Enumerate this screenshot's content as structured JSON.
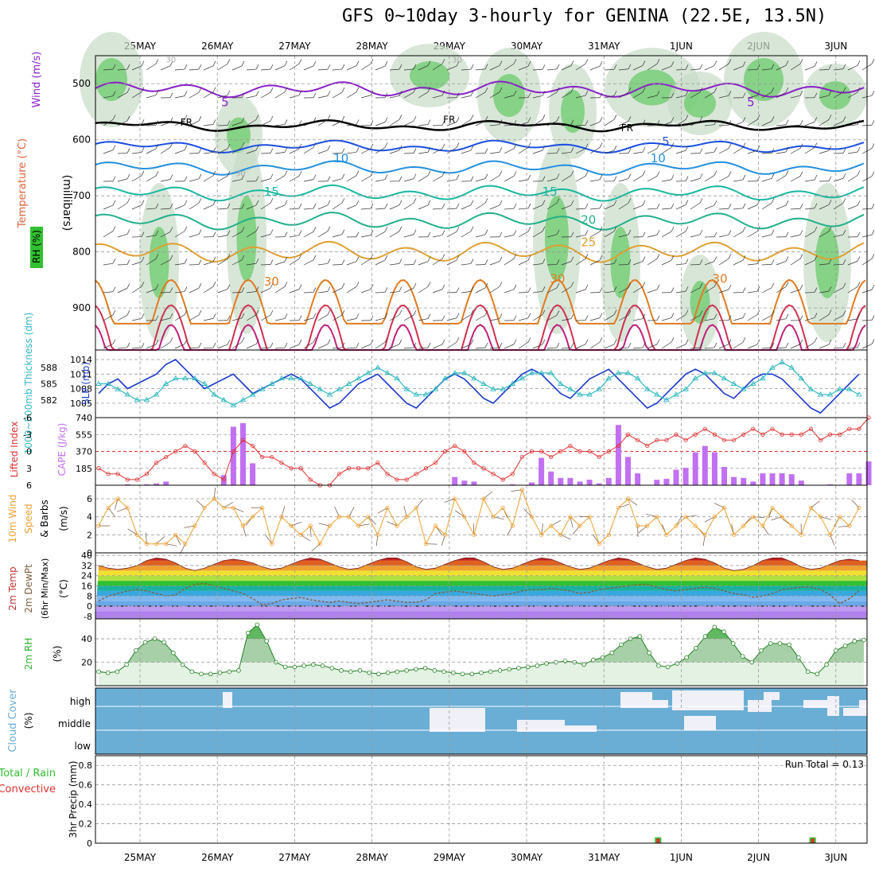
{
  "title": "GFS 0~10day 3-hourly for GENINA (22.5E, 13.5N)",
  "dates": [
    "25MAY",
    "26MAY",
    "27MAY",
    "28MAY",
    "29MAY",
    "30MAY",
    "31MAY",
    "1JUN",
    "2JUN",
    "3JUN"
  ],
  "colors": {
    "temp_cold": "#5a8ee8",
    "temp_mid": "#18b8a0",
    "temp_warm": "#e08820",
    "temp_hot": "#d0206a",
    "purple": "#8a20c8",
    "rh_green": "#30d030",
    "slp": "#1a3acc",
    "thickness": "#30b8c0",
    "cape": "#c070f0",
    "li": "#e03030",
    "wind10": "#f0a030",
    "cloud": "#6aaed6",
    "precip_total": "#30c030",
    "precip_conv": "#e03030"
  },
  "chart_data": [
    {
      "type": "heatmap",
      "panel": "profile",
      "ylabel_left1": "RH (%)",
      "ylabel_left2": "Temperature (°C)",
      "ylabel_left3": "Wind (m/s)",
      "ylabel_right": "(millibars)",
      "ylim": [
        975,
        450
      ],
      "yticks": [
        500,
        600,
        700,
        800,
        900
      ],
      "contour_labels": [
        {
          "text": "5",
          "x": 1.1,
          "p": 540,
          "group": "purple"
        },
        {
          "text": "5",
          "x": 7.9,
          "p": 540,
          "group": "purple"
        },
        {
          "text": "FR",
          "x": 0.6,
          "p": 575,
          "group": "black"
        },
        {
          "text": "FR",
          "x": 4.0,
          "p": 570,
          "group": "black"
        },
        {
          "text": "FR",
          "x": 6.3,
          "p": 585,
          "group": "black"
        },
        {
          "text": "5",
          "x": 6.8,
          "p": 610,
          "group": "cold"
        },
        {
          "text": "10",
          "x": 2.6,
          "p": 640,
          "group": "cold2"
        },
        {
          "text": "10",
          "x": 6.7,
          "p": 640,
          "group": "cold2"
        },
        {
          "text": "15",
          "x": 1.7,
          "p": 700,
          "group": "mid"
        },
        {
          "text": "15",
          "x": 5.3,
          "p": 700,
          "group": "mid"
        },
        {
          "text": "20",
          "x": 5.8,
          "p": 750,
          "group": "mid2"
        },
        {
          "text": "25",
          "x": 5.8,
          "p": 790,
          "group": "warm"
        },
        {
          "text": "30",
          "x": 1.7,
          "p": 860,
          "group": "warm2"
        },
        {
          "text": "30",
          "x": 5.4,
          "p": 855,
          "group": "warm2"
        },
        {
          "text": "30",
          "x": 7.5,
          "p": 855,
          "group": "warm2"
        },
        {
          "text": "30",
          "x": 0.4,
          "p": 462,
          "group": "grey"
        },
        {
          "text": "30",
          "x": 1.3,
          "p": 665,
          "group": "grey"
        },
        {
          "text": "30",
          "x": 4.1,
          "p": 462,
          "group": "grey"
        }
      ]
    },
    {
      "type": "line",
      "panel": "slp",
      "ylabel_left": "1000~500mb Thickness (dm)",
      "ylabel_right": "SLP (mb)",
      "yticks_left": [
        582,
        585,
        588
      ],
      "yticks_right": [
        1005,
        1008,
        1011,
        1014
      ],
      "slp": [
        1007,
        1009,
        1010,
        1008,
        1009,
        1010,
        1011,
        1013,
        1014,
        1012,
        1010,
        1008,
        1009,
        1010,
        1011,
        1009,
        1007,
        1008,
        1009,
        1010,
        1011,
        1010,
        1008,
        1006,
        1004,
        1005,
        1007,
        1009,
        1010,
        1011,
        1009,
        1007,
        1005,
        1004,
        1006,
        1008,
        1010,
        1011,
        1010,
        1008,
        1006,
        1005,
        1007,
        1009,
        1011,
        1012,
        1011,
        1009,
        1007,
        1006,
        1008,
        1010,
        1011,
        1012,
        1010,
        1008,
        1006,
        1004,
        1005,
        1007,
        1009,
        1011,
        1012,
        1011,
        1009,
        1007,
        1006,
        1008,
        1010,
        1011,
        1011,
        1010,
        1008,
        1006,
        1004,
        1003,
        1005,
        1007,
        1009,
        1011
      ],
      "thickness": [
        585,
        585,
        584,
        583,
        582,
        582,
        583,
        585,
        586,
        586,
        586,
        585,
        583,
        582,
        581,
        582,
        583,
        584,
        585,
        586,
        586,
        586,
        585,
        584,
        583,
        584,
        585,
        586,
        587,
        588,
        587,
        586,
        584,
        583,
        583,
        584,
        586,
        587,
        587,
        586,
        585,
        584,
        584,
        585,
        586,
        587,
        587,
        587,
        585,
        584,
        583,
        583,
        584,
        586,
        587,
        587,
        586,
        584,
        583,
        582,
        583,
        584,
        586,
        587,
        587,
        586,
        585,
        584,
        585,
        586,
        588,
        589,
        588,
        586,
        584,
        583,
        583,
        584,
        584,
        583
      ]
    },
    {
      "type": "bar",
      "panel": "cape",
      "ylabel_left": "Lifted Index",
      "ylabel_right": "CAPE (J/kg)",
      "yticks_left": [
        -6,
        -3,
        0,
        3,
        6
      ],
      "yticks_right": [
        185,
        370,
        555,
        740
      ],
      "cape": [
        0,
        0,
        0,
        10,
        0,
        10,
        20,
        40,
        0,
        0,
        0,
        0,
        0,
        110,
        640,
        680,
        240,
        0,
        0,
        0,
        0,
        0,
        0,
        0,
        0,
        0,
        0,
        0,
        0,
        0,
        0,
        0,
        0,
        0,
        0,
        0,
        0,
        90,
        50,
        40,
        0,
        0,
        0,
        10,
        0,
        30,
        300,
        150,
        80,
        80,
        40,
        60,
        20,
        80,
        660,
        310,
        130,
        0,
        60,
        70,
        170,
        190,
        360,
        430,
        360,
        200,
        90,
        80,
        40,
        130,
        130,
        130,
        120,
        50,
        0,
        0,
        10,
        0,
        130,
        130,
        260
      ],
      "lifted_index": [
        3,
        4,
        4,
        5,
        5,
        4,
        2,
        1,
        0,
        -1,
        0,
        2,
        4,
        5,
        0,
        -2,
        -1,
        1,
        1,
        2,
        3,
        3,
        5,
        6,
        6,
        4,
        3,
        3,
        3,
        2,
        4,
        5,
        5,
        4,
        3,
        2,
        0,
        -1,
        0,
        2,
        3,
        4,
        5,
        4,
        1,
        0,
        0,
        1,
        0,
        -1,
        0,
        0,
        1,
        0,
        -1,
        -3,
        -2,
        -1,
        -2,
        -2,
        -3,
        -2,
        -3,
        -4,
        -3,
        -2,
        -2,
        -3,
        -4,
        -3,
        -4,
        -3,
        -3,
        -3,
        -4,
        -2,
        -3,
        -3,
        -4,
        -4,
        -6
      ]
    },
    {
      "type": "line",
      "panel": "wind10",
      "ylabel_left": "10m Wind Speed & Barbs",
      "ylabel_right": "(m/s)",
      "yticks": [
        0,
        2,
        4,
        6
      ],
      "speed": [
        3,
        5,
        6,
        5,
        2,
        1,
        1,
        1,
        2,
        1,
        3,
        5,
        6,
        5,
        5,
        3,
        4,
        5,
        1,
        4,
        3,
        2,
        3,
        1,
        3,
        4,
        4,
        3,
        4,
        2,
        5,
        3,
        4,
        5,
        1,
        3,
        2,
        6,
        4,
        2,
        6,
        4,
        5,
        3,
        7,
        4,
        2,
        3,
        2,
        4,
        3,
        4,
        1,
        2,
        5,
        6,
        3,
        3,
        4,
        2,
        3,
        4,
        3,
        2,
        4,
        5,
        2,
        3,
        4,
        3,
        5,
        4,
        3,
        2,
        5,
        4,
        2,
        4,
        3,
        5
      ],
      "ylim": [
        0,
        7.5
      ]
    },
    {
      "type": "line",
      "panel": "temp2m",
      "ylabel_left": "2m Temp 2m DewPt (6hr Min/Max)",
      "ylabel_right": "(°C)",
      "yticks": [
        -8,
        0,
        8,
        16,
        24,
        32,
        40
      ],
      "tick_labels": [
        "-8",
        "0",
        "8",
        "16",
        "24",
        "32",
        "40"
      ],
      "temp": [
        32,
        30,
        29,
        30,
        32,
        36,
        38,
        37,
        34,
        30,
        28,
        30,
        33,
        36,
        37,
        36,
        34,
        31,
        29,
        30,
        33,
        36,
        38,
        37,
        34,
        31,
        29,
        30,
        33,
        36,
        38,
        38,
        35,
        31,
        29,
        30,
        33,
        36,
        38,
        38,
        35,
        31,
        29,
        30,
        33,
        36,
        38,
        37,
        34,
        31,
        29,
        30,
        33,
        36,
        38,
        37,
        34,
        31,
        29,
        30,
        33,
        36,
        38,
        37,
        34,
        30,
        28,
        29,
        32,
        36,
        38,
        38,
        35,
        31,
        29,
        30,
        33,
        36,
        37,
        36
      ],
      "dewpoint": [
        4,
        8,
        10,
        12,
        13,
        12,
        10,
        8,
        9,
        14,
        17,
        18,
        16,
        14,
        12,
        10,
        6,
        1,
        2,
        5,
        6,
        7,
        5,
        4,
        3,
        4,
        3,
        2,
        3,
        4,
        5,
        4,
        3,
        3,
        5,
        10,
        11,
        12,
        11,
        10,
        9,
        8,
        9,
        10,
        12,
        13,
        13,
        14,
        13,
        12,
        10,
        11,
        13,
        14,
        15,
        16,
        17,
        17,
        15,
        13,
        12,
        13,
        14,
        15,
        14,
        12,
        10,
        9,
        7,
        8,
        10,
        13,
        14,
        15,
        15,
        13,
        9,
        2,
        6,
        12
      ]
    },
    {
      "type": "area",
      "panel": "rh2m",
      "ylabel_left": "2m RH",
      "ylabel_right": "(%)",
      "yticks": [
        20,
        40
      ],
      "ylim": [
        0,
        57
      ],
      "rh": [
        12,
        11,
        12,
        18,
        30,
        37,
        40,
        37,
        28,
        18,
        12,
        10,
        10,
        11,
        12,
        13,
        45,
        52,
        38,
        20,
        16,
        16,
        17,
        18,
        17,
        15,
        13,
        12,
        13,
        11,
        10,
        11,
        12,
        13,
        14,
        15,
        13,
        12,
        11,
        10,
        10,
        11,
        12,
        13,
        14,
        15,
        16,
        17,
        19,
        20,
        21,
        20,
        18,
        22,
        24,
        28,
        35,
        40,
        42,
        28,
        17,
        16,
        19,
        24,
        32,
        42,
        50,
        46,
        36,
        25,
        20,
        30,
        36,
        36,
        35,
        24,
        12,
        10,
        18,
        30
      ],
      "tail": [
        34,
        38,
        39
      ]
    },
    {
      "type": "heatmap",
      "panel": "cloud",
      "ylabel_left": "Cloud Cover",
      "ylabel_right": "(%)",
      "levels": [
        "high",
        "middle",
        "low"
      ]
    },
    {
      "type": "bar",
      "panel": "precip",
      "ylabel_left1": "Total / Rain",
      "ylabel_left2": "Convective",
      "ylabel_right": "3hr Precip (mm)",
      "yticks": [
        0,
        0.2,
        0.4,
        0.6,
        0.8
      ],
      "ylim": [
        0,
        0.9
      ],
      "bars": [
        {
          "x": 6.7,
          "value": 0.06
        },
        {
          "x": 8.7,
          "value": 0.06
        }
      ],
      "run_total": "Run Total = 0.13"
    }
  ]
}
